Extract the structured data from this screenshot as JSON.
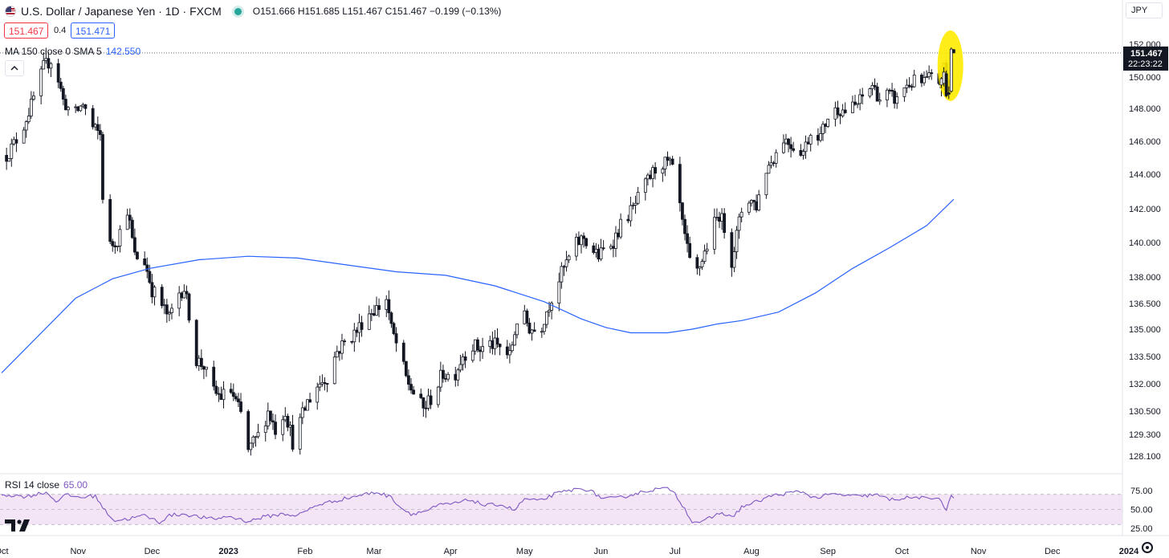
{
  "header": {
    "title": "U.S. Dollar / Japanese Yen · 1D · FXCM",
    "open": "O151.666",
    "high": "H151.685",
    "low": "L151.467",
    "close": "C151.467",
    "change": "−0.199 (−0.13%)"
  },
  "quote": {
    "sell": "151.467",
    "spread": "0.4",
    "buy": "151.471"
  },
  "ma_legend": {
    "label": "MA 150 close 0 SMA 5",
    "value": "142.550"
  },
  "rsi_legend": {
    "label": "RSI 14 close",
    "value": "65.00"
  },
  "currency_button": "JPY",
  "last_price": {
    "value": "151.467",
    "countdown": "22:23:22"
  },
  "colors": {
    "ma": "#2962ff",
    "rsi": "#7e57c2",
    "rsi_band": "#f3e5f5",
    "candle": "#131722",
    "highlight": "#ffeb00"
  },
  "icons": [
    "us-japan-flag-icon",
    "market-open-dot-icon",
    "chevron-up-icon",
    "tradingview-logo-icon",
    "settings-gear-icon"
  ],
  "chart_data": [
    {
      "type": "candlestick",
      "series": [
        {
          "name": "U.S. Dollar / Japanese Yen"
        }
      ],
      "y_ticks": [
        152.0,
        150.0,
        148.0,
        146.0,
        144.0,
        142.0,
        140.0,
        138.0,
        136.5,
        135.0,
        133.5,
        132.0,
        130.5,
        129.3,
        128.1
      ],
      "y_tick_labels": [
        "152.000",
        "150.000",
        "148.000",
        "146.000",
        "144.000",
        "142.000",
        "140.000",
        "138.000",
        "136.500",
        "135.000",
        "133.500",
        "132.000",
        "130.500",
        "129.300",
        "128.100"
      ],
      "x_labels": [
        "Oct",
        "Nov",
        "Dec",
        "2023",
        "Feb",
        "Mar",
        "Apr",
        "May",
        "Jun",
        "Jul",
        "Aug",
        "Sep",
        "Oct",
        "Nov",
        "Dec",
        "2024"
      ],
      "x_label_days": [
        -30,
        1,
        31,
        62,
        93,
        121,
        152,
        182,
        213,
        243,
        274,
        305,
        335,
        366,
        396,
        427
      ],
      "x_date_start": "2022-10-01",
      "ylim": [
        127.5,
        153.0
      ],
      "close_path": [
        [
          -30,
          144.7
        ],
        [
          -26,
          145.6
        ],
        [
          -22,
          146.6
        ],
        [
          -18,
          148.2
        ],
        [
          -13,
          150.6
        ],
        [
          -9,
          151.2
        ],
        [
          -5,
          148.5
        ],
        [
          -1,
          147.5
        ],
        [
          3,
          148.3
        ],
        [
          7,
          146.8
        ],
        [
          10,
          146.4
        ],
        [
          11,
          142.8
        ],
        [
          14,
          139.8
        ],
        [
          17,
          140.2
        ],
        [
          21,
          142.0
        ],
        [
          24,
          139.2
        ],
        [
          28,
          138.9
        ],
        [
          31,
          137.3
        ],
        [
          35,
          136.4
        ],
        [
          38,
          135.6
        ],
        [
          41,
          137.0
        ],
        [
          44,
          137.4
        ],
        [
          46,
          135.9
        ],
        [
          49,
          133.3
        ],
        [
          52,
          133.0
        ],
        [
          55,
          131.6
        ],
        [
          59,
          131.3
        ],
        [
          63,
          131.6
        ],
        [
          67,
          130.3
        ],
        [
          70,
          128.4
        ],
        [
          74,
          129.2
        ],
        [
          78,
          130.5
        ],
        [
          81,
          129.6
        ],
        [
          85,
          130.6
        ],
        [
          88,
          128.9
        ],
        [
          91,
          129.9
        ],
        [
          94,
          131.0
        ],
        [
          98,
          131.9
        ],
        [
          102,
          132.4
        ],
        [
          106,
          133.8
        ],
        [
          110,
          134.4
        ],
        [
          114,
          134.9
        ],
        [
          118,
          135.9
        ],
        [
          123,
          136.3
        ],
        [
          126,
          136.8
        ],
        [
          128,
          135.0
        ],
        [
          131,
          133.8
        ],
        [
          134,
          132.3
        ],
        [
          137,
          131.5
        ],
        [
          141,
          130.6
        ],
        [
          145,
          131.4
        ],
        [
          149,
          132.6
        ],
        [
          153,
          132.3
        ],
        [
          157,
          133.6
        ],
        [
          161,
          134.1
        ],
        [
          164,
          133.9
        ],
        [
          168,
          134.2
        ],
        [
          172,
          134.0
        ],
        [
          176,
          133.5
        ],
        [
          180,
          136.2
        ],
        [
          184,
          135.1
        ],
        [
          188,
          134.8
        ],
        [
          191,
          136.1
        ],
        [
          195,
          137.6
        ],
        [
          199,
          138.8
        ],
        [
          203,
          139.9
        ],
        [
          206,
          140.3
        ],
        [
          209,
          139.6
        ],
        [
          212,
          139.2
        ],
        [
          215,
          139.7
        ],
        [
          218,
          140.1
        ],
        [
          222,
          141.3
        ],
        [
          226,
          142.0
        ],
        [
          230,
          143.1
        ],
        [
          234,
          144.1
        ],
        [
          237,
          144.7
        ],
        [
          241,
          144.6
        ],
        [
          244,
          143.3
        ],
        [
          246,
          141.0
        ],
        [
          249,
          138.8
        ],
        [
          252,
          138.3
        ],
        [
          255,
          139.4
        ],
        [
          258,
          140.8
        ],
        [
          261,
          141.7
        ],
        [
          264,
          140.5
        ],
        [
          266,
          139.0
        ],
        [
          270,
          141.9
        ],
        [
          273,
          142.6
        ],
        [
          276,
          142.2
        ],
        [
          280,
          144.3
        ],
        [
          284,
          145.3
        ],
        [
          287,
          146.2
        ],
        [
          291,
          145.7
        ],
        [
          295,
          145.4
        ],
        [
          299,
          146.9
        ],
        [
          302,
          146.3
        ],
        [
          305,
          147.5
        ],
        [
          309,
          148.0
        ],
        [
          313,
          147.8
        ],
        [
          317,
          148.3
        ],
        [
          320,
          148.9
        ],
        [
          323,
          149.5
        ],
        [
          326,
          148.6
        ],
        [
          329,
          148.9
        ],
        [
          333,
          148.5
        ],
        [
          336,
          149.4
        ],
        [
          340,
          149.7
        ],
        [
          343,
          149.6
        ],
        [
          346,
          149.9
        ],
        [
          349,
          149.9
        ],
        [
          351,
          149.5
        ],
        [
          352,
          150.5
        ],
        [
          353,
          149.7
        ],
        [
          354,
          149.1
        ],
        [
          355,
          151.6
        ],
        [
          356,
          151.5
        ]
      ],
      "annotations": [
        {
          "type": "highlight",
          "target": "last candles",
          "color": "#ffeb00"
        }
      ]
    },
    {
      "type": "line",
      "series": [
        {
          "name": "MA 150 close 0 SMA 5",
          "points": [
            [
              -30,
              132.6
            ],
            [
              0,
              136.8
            ],
            [
              15,
              137.9
            ],
            [
              30,
              138.5
            ],
            [
              50,
              139.0
            ],
            [
              70,
              139.2
            ],
            [
              90,
              139.1
            ],
            [
              110,
              138.7
            ],
            [
              130,
              138.3
            ],
            [
              150,
              138.1
            ],
            [
              170,
              137.5
            ],
            [
              190,
              136.6
            ],
            [
              205,
              135.6
            ],
            [
              215,
              135.1
            ],
            [
              225,
              134.8
            ],
            [
              240,
              134.8
            ],
            [
              250,
              135.0
            ],
            [
              260,
              135.3
            ],
            [
              270,
              135.5
            ],
            [
              285,
              136.0
            ],
            [
              300,
              137.1
            ],
            [
              315,
              138.5
            ],
            [
              330,
              139.7
            ],
            [
              345,
              141.0
            ],
            [
              356,
              142.55
            ]
          ]
        }
      ]
    },
    {
      "type": "line",
      "series": [
        {
          "name": "RSI 14 close",
          "points": [
            [
              -30,
              70
            ],
            [
              -20,
              67
            ],
            [
              -12,
              73
            ],
            [
              -8,
              61
            ],
            [
              -4,
              69
            ],
            [
              2,
              66
            ],
            [
              8,
              68
            ],
            [
              12,
              48
            ],
            [
              16,
              35
            ],
            [
              22,
              38
            ],
            [
              28,
              42
            ],
            [
              34,
              33
            ],
            [
              38,
              42
            ],
            [
              44,
              44
            ],
            [
              50,
              40
            ],
            [
              56,
              37
            ],
            [
              62,
              41
            ],
            [
              70,
              34
            ],
            [
              76,
              40
            ],
            [
              84,
              44
            ],
            [
              90,
              42
            ],
            [
              98,
              56
            ],
            [
              106,
              62
            ],
            [
              114,
              68
            ],
            [
              122,
              73
            ],
            [
              128,
              66
            ],
            [
              132,
              52
            ],
            [
              136,
              44
            ],
            [
              142,
              48
            ],
            [
              148,
              56
            ],
            [
              154,
              58
            ],
            [
              160,
              63
            ],
            [
              166,
              55
            ],
            [
              172,
              57
            ],
            [
              178,
              49
            ],
            [
              182,
              64
            ],
            [
              188,
              61
            ],
            [
              194,
              70
            ],
            [
              200,
              75
            ],
            [
              206,
              78
            ],
            [
              210,
              72
            ],
            [
              214,
              64
            ],
            [
              220,
              65
            ],
            [
              226,
              70
            ],
            [
              232,
              75
            ],
            [
              238,
              78
            ],
            [
              242,
              76
            ],
            [
              246,
              56
            ],
            [
              250,
              34
            ],
            [
              254,
              33
            ],
            [
              258,
              40
            ],
            [
              262,
              46
            ],
            [
              266,
              39
            ],
            [
              270,
              53
            ],
            [
              276,
              60
            ],
            [
              282,
              68
            ],
            [
              288,
              71
            ],
            [
              294,
              74
            ],
            [
              300,
              65
            ],
            [
              306,
              70
            ],
            [
              312,
              69
            ],
            [
              318,
              67
            ],
            [
              324,
              70
            ],
            [
              330,
              63
            ],
            [
              336,
              65
            ],
            [
              342,
              66
            ],
            [
              346,
              63
            ],
            [
              350,
              67
            ],
            [
              353,
              48
            ],
            [
              355,
              68
            ],
            [
              356,
              65
            ]
          ]
        }
      ],
      "y_ticks": [
        75.0,
        50.0,
        25.0
      ],
      "y_tick_labels": [
        "75.00",
        "50.00",
        "25.00"
      ],
      "band": [
        30,
        70
      ],
      "ylim": [
        20,
        82
      ]
    }
  ]
}
